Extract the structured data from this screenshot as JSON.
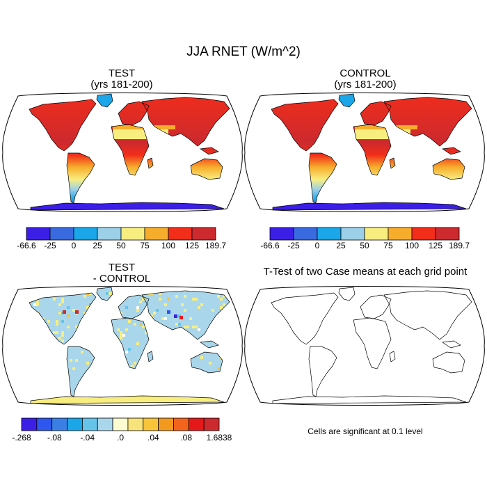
{
  "title": "JJA RNET (W/m^2)",
  "panels": {
    "test": {
      "title": "TEST",
      "subtitle": "(yrs 181-200)"
    },
    "control": {
      "title": "CONTROL",
      "subtitle": "(yrs 181-200)"
    },
    "diff": {
      "title": "TEST",
      "subtitle": "- CONTROL"
    },
    "ttest": {
      "title": "T-Test of two Case means at each grid point",
      "note": "Cells are significant at 0.1 level"
    }
  },
  "colorbar_main": {
    "colors": [
      "#3b1fe6",
      "#3a6ae0",
      "#1aa6e8",
      "#9ccfe8",
      "#f8ee80",
      "#f6ad2c",
      "#f22d1a",
      "#cc2a2e"
    ],
    "labels": [
      "-66.6",
      "-25",
      "0",
      "25",
      "50",
      "75",
      "100",
      "125",
      "189.7"
    ]
  },
  "colorbar_diff": {
    "colors": [
      "#3b1fe6",
      "#2f56ee",
      "#3a7fe6",
      "#1aa6e8",
      "#66c3ea",
      "#a9d6ea",
      "#fdfbd0",
      "#f8e37a",
      "#f8c43a",
      "#f39a1e",
      "#f2631c",
      "#e6191a",
      "#cc2a2e"
    ],
    "labels": [
      "-.268",
      "-.08",
      "-.04",
      ".0",
      ".04",
      ".08",
      "1.6838"
    ]
  },
  "map_colors": {
    "land_hot": "#cc2a2e",
    "land_warm": "#f22d1a",
    "orange": "#f6ad2c",
    "yellow": "#f8ee80",
    "lightblue": "#9ccfe8",
    "blue": "#1aa6e8",
    "deepblue": "#3b1fe6",
    "diff_bg": "#a9d6ea",
    "diff_pos": "#f8ee80"
  }
}
